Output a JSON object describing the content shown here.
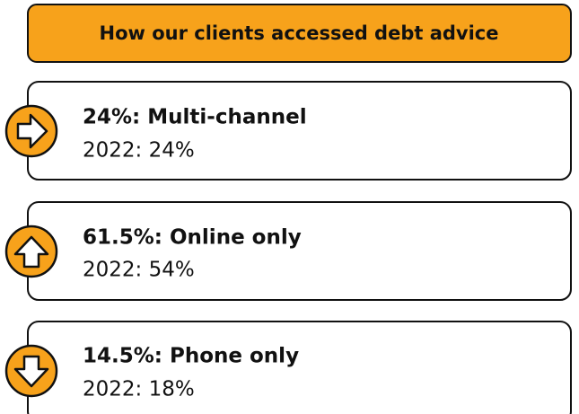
{
  "title": "How our clients accessed debt advice",
  "items": [
    {
      "label": "24%: Multi-channel",
      "previous": "2022: 24%"
    },
    {
      "label": "61.5%: Online only",
      "previous": "2022: 54%"
    },
    {
      "label": "14.5%: Phone only",
      "previous": "2022: 18%"
    }
  ]
}
